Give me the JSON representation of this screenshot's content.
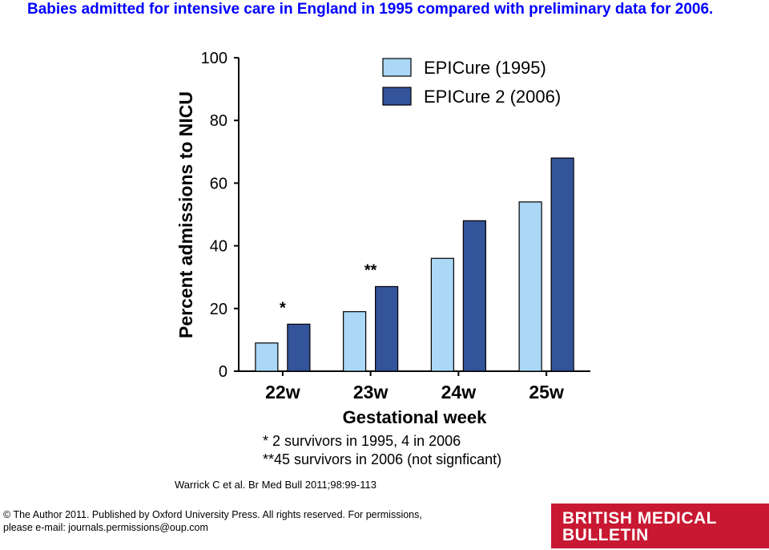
{
  "slide": {
    "title": "Babies admitted for intensive care in England in 1995 compared with preliminary data for 2006.",
    "citation": "Warrick C et al. Br Med Bull 2011;98:99-113",
    "copyright_line1": "© The Author 2011. Published by Oxford University Press. All rights reserved. For permissions,",
    "copyright_line2": "please e-mail: journals.permissions@oup.com",
    "logo_line1": "BRITISH MEDICAL",
    "logo_line2": "BULLETIN",
    "title_color": "#0000ff",
    "logo_color": "#c81832"
  },
  "chart_data": {
    "type": "bar",
    "categories": [
      "22w",
      "23w",
      "24w",
      "25w"
    ],
    "series": [
      {
        "name": "EPICure (1995)",
        "values": [
          9,
          19,
          36,
          54
        ],
        "color": "#aad8f6"
      },
      {
        "name": "EPICure 2 (2006)",
        "values": [
          15,
          27,
          48,
          68
        ],
        "color": "#33539a"
      }
    ],
    "xlabel": "Gestational week",
    "ylabel": "Percent admissions to NICU",
    "ylim": [
      0,
      100
    ],
    "yticks": [
      0,
      20,
      40,
      60,
      80,
      100
    ],
    "grid": false,
    "legend_position": "top-right",
    "annotations": [
      {
        "category": "22w",
        "text": "*"
      },
      {
        "category": "23w",
        "text": "**"
      }
    ],
    "notes": [
      "* 2 survivors in 1995, 4 in 2006",
      "**45 survivors in 2006 (not signficant)"
    ]
  }
}
